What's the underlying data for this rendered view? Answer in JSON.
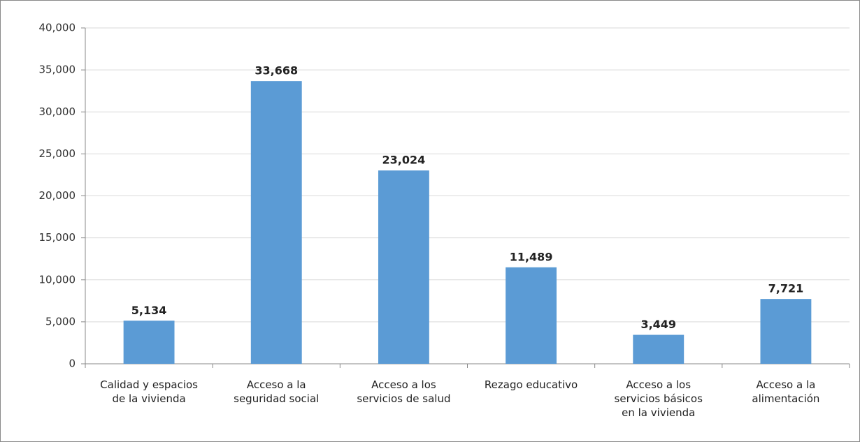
{
  "chart_data": {
    "type": "bar",
    "categories": [
      "Calidad y espacios de la vivienda",
      "Acceso a la seguridad social",
      "Acceso a los servicios de salud",
      "Rezago educativo",
      "Acceso a los servicios básicos en la vivienda",
      "Acceso a la alimentación"
    ],
    "values": [
      5134,
      33668,
      23024,
      11489,
      3449,
      7721
    ],
    "value_labels": [
      "5,134",
      "33,668",
      "23,024",
      "11,489",
      "3,449",
      "7,721"
    ],
    "color": "#5b9bd5",
    "ylim": [
      0,
      40000
    ],
    "yticks": [
      0,
      {
        "value": 5000,
        "label": "5,000"
      },
      {
        "value": 10000,
        "label": "10,000"
      },
      {
        "value": 15000,
        "label": "15,000"
      },
      {
        "value": 20000,
        "label": "20,000"
      },
      {
        "value": 25000,
        "label": "25,000"
      },
      {
        "value": 30000,
        "label": "30,000"
      },
      {
        "value": 35000,
        "label": "35,000"
      },
      {
        "value": 40000,
        "label": "40,000"
      }
    ],
    "grid": true
  }
}
